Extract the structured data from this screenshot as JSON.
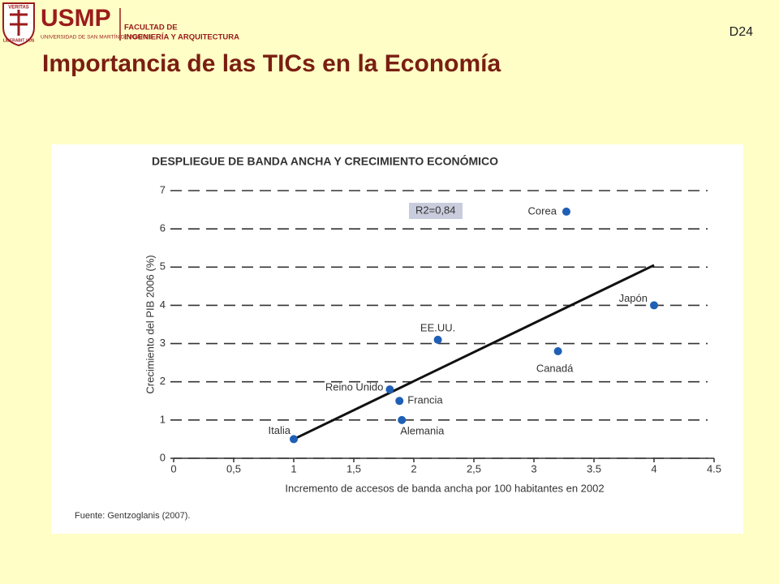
{
  "header": {
    "logo_top": "VERITAS",
    "logo_bottom": "LIBERABIT VOS",
    "brand": "USMP",
    "brand_sub": "UNIVERSIDAD DE SAN MARTÍN DE PORRES",
    "faculty_1": "FACULTAD DE",
    "faculty_2": "INGENIERÍA Y ARQUITECTURA",
    "slide_id": "D24",
    "title": "Importancia de las TICs en la Economía"
  },
  "chart_data": {
    "type": "scatter",
    "title": "DESPLIEGUE DE BANDA ANCHA Y CRECIMIENTO ECONÓMICO",
    "x_label": "Incremento de accesos de banda ancha por 100 habitantes en 2002",
    "y_label": "Crecimiento del PIB 2006 (%)",
    "annotation": "R2=0,84",
    "source": "Fuente: Gentzoglanis (2007).",
    "x": [
      1,
      1.8,
      1.88,
      1.9,
      2.2,
      3.2,
      3.27,
      4
    ],
    "series": [
      {
        "color": "#1f5fb5",
        "labels": [
          "Italia",
          "Reino Unido",
          "Francia",
          "Alemania",
          "EE.UU.",
          "Canadá",
          "Corea",
          "Japón"
        ],
        "values": [
          0.5,
          1.8,
          1.5,
          1.0,
          3.1,
          2.8,
          6.45,
          4.0
        ]
      }
    ],
    "trendline": {
      "x": [
        1,
        4
      ],
      "y": [
        0.5,
        5.05
      ],
      "color": "#111111"
    },
    "xlim": [
      0,
      4.5
    ],
    "ylim": [
      0,
      7
    ],
    "xticks": [
      0,
      {
        "value": 0.5,
        "label": "0,5"
      },
      1,
      {
        "value": 1.5,
        "label": "1,5"
      },
      2,
      {
        "value": 2.5,
        "label": "2,5"
      },
      3,
      {
        "value": 3.5,
        "label": "3.5"
      },
      4,
      {
        "value": 4.5,
        "label": "4.5"
      }
    ],
    "yticks": [
      0,
      1,
      2,
      3,
      4,
      5,
      6,
      7
    ],
    "grid": true
  }
}
